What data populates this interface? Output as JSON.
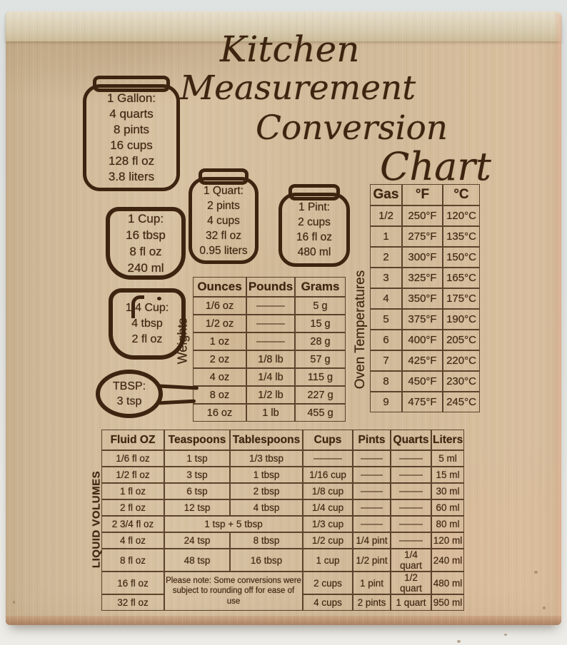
{
  "title": {
    "line1": "Kitchen",
    "line2": "Measurement",
    "line3": "Conversion",
    "line4": "Chart"
  },
  "vessels": {
    "gallon": {
      "lines": [
        "1 Gallon:",
        "4 quarts",
        "8 pints",
        "16 cups",
        "128 fl oz",
        "3.8 liters"
      ]
    },
    "quart": {
      "lines": [
        "1 Quart:",
        "2 pints",
        "4 cups",
        "32 fl oz",
        "0.95 liters"
      ]
    },
    "pint": {
      "lines": [
        "1 Pint:",
        "2 cups",
        "16 fl oz",
        "480 ml"
      ]
    },
    "cup": {
      "lines": [
        "1 Cup:",
        "16 tbsp",
        "8 fl oz",
        "240 ml"
      ]
    },
    "quarter_cup": {
      "lines": [
        "1/4 Cup:",
        "4 tbsp",
        "2 fl oz"
      ]
    },
    "tbsp": {
      "lines": [
        "TBSP:",
        "3 tsp"
      ]
    }
  },
  "tables": {
    "weights": {
      "label": "Weights",
      "headers": [
        "Ounces",
        "Pounds",
        "Grams"
      ],
      "rows": [
        [
          "1/6 oz",
          {
            "d": 1
          },
          "5 g"
        ],
        [
          "1/2 oz",
          {
            "d": 1
          },
          "15 g"
        ],
        [
          "1 oz",
          {
            "d": 1
          },
          "28 g"
        ],
        [
          "2 oz",
          "1/8 lb",
          "57 g"
        ],
        [
          "4 oz",
          "1/4 lb",
          "115 g"
        ],
        [
          "8 oz",
          "1/2 lb",
          "227 g"
        ],
        [
          "16 oz",
          "1 lb",
          "455 g"
        ]
      ]
    },
    "oven": {
      "label": "Oven Temperatures",
      "headers": [
        "Gas",
        "°F",
        "°C"
      ],
      "rows": [
        [
          "1/2",
          "250°F",
          "120°C"
        ],
        [
          "1",
          "275°F",
          "135°C"
        ],
        [
          "2",
          "300°F",
          "150°C"
        ],
        [
          "3",
          "325°F",
          "165°C"
        ],
        [
          "4",
          "350°F",
          "175°C"
        ],
        [
          "5",
          "375°F",
          "190°C"
        ],
        [
          "6",
          "400°F",
          "205°C"
        ],
        [
          "7",
          "425°F",
          "220°C"
        ],
        [
          "8",
          "450°F",
          "230°C"
        ],
        [
          "9",
          "475°F",
          "245°C"
        ]
      ]
    },
    "liquid": {
      "label": "LIQUID VOLUMES",
      "headers": [
        "Fluid OZ",
        "Teaspoons",
        "Tablespoons",
        "Cups",
        "Pints",
        "Quarts",
        "Liters"
      ],
      "rows": [
        [
          "1/6 fl oz",
          "1 tsp",
          "1/3 tbsp",
          {
            "d": 1
          },
          {
            "d": 1
          },
          {
            "d": 1
          },
          "5 ml"
        ],
        [
          "1/2 fl oz",
          "3 tsp",
          "1 tbsp",
          "1/16 cup",
          {
            "d": 1
          },
          {
            "d": 1
          },
          "15 ml"
        ],
        [
          "1 fl oz",
          "6 tsp",
          "2 tbsp",
          "1/8 cup",
          {
            "d": 1
          },
          {
            "d": 1
          },
          "30 ml"
        ],
        [
          "2 fl oz",
          "12 tsp",
          "4 tbsp",
          "1/4 cup",
          {
            "d": 1
          },
          {
            "d": 1
          },
          "60 ml"
        ],
        [
          "2 3/4 fl oz",
          {
            "t": "1 tsp + 5 tbsp",
            "c": 2
          },
          "1/3 cup",
          {
            "d": 1
          },
          {
            "d": 1
          },
          "80 ml"
        ],
        [
          "4 fl oz",
          "24 tsp",
          "8 tbsp",
          "1/2 cup",
          "1/4 pint",
          {
            "d": 1
          },
          "120 ml"
        ],
        [
          "8 fl oz",
          "48 tsp",
          "16 tbsp",
          "1 cup",
          "1/2 pint",
          "1/4 quart",
          "240 ml"
        ],
        [
          "16 fl oz",
          {
            "t": "Please note: Some conversions were subject to rounding off for ease of use",
            "c": 2,
            "r": 2,
            "note": 1
          },
          "2 cups",
          "1 pint",
          "1/2 quart",
          "480 ml"
        ],
        [
          "32 fl oz",
          "4 cups",
          "2 pints",
          "1 quart",
          "950 ml"
        ]
      ]
    }
  },
  "colors": {
    "background": "#e3e5e2",
    "wood": "#d5bf9e",
    "engraving": "#3d2410"
  },
  "chart_data": [
    {
      "type": "table",
      "title": "Weights",
      "columns": [
        "Ounces",
        "Pounds",
        "Grams"
      ],
      "rows": [
        [
          "1/6 oz",
          "",
          "5 g"
        ],
        [
          "1/2 oz",
          "",
          "15 g"
        ],
        [
          "1 oz",
          "",
          "28 g"
        ],
        [
          "2 oz",
          "1/8 lb",
          "57 g"
        ],
        [
          "4 oz",
          "1/4 lb",
          "115 g"
        ],
        [
          "8 oz",
          "1/2 lb",
          "227 g"
        ],
        [
          "16 oz",
          "1 lb",
          "455 g"
        ]
      ]
    },
    {
      "type": "table",
      "title": "Oven Temperatures",
      "columns": [
        "Gas",
        "°F",
        "°C"
      ],
      "rows": [
        [
          "1/2",
          "250°F",
          "120°C"
        ],
        [
          "1",
          "275°F",
          "135°C"
        ],
        [
          "2",
          "300°F",
          "150°C"
        ],
        [
          "3",
          "325°F",
          "165°C"
        ],
        [
          "4",
          "350°F",
          "175°C"
        ],
        [
          "5",
          "375°F",
          "190°C"
        ],
        [
          "6",
          "400°F",
          "205°C"
        ],
        [
          "7",
          "425°F",
          "220°C"
        ],
        [
          "8",
          "450°F",
          "230°C"
        ],
        [
          "9",
          "475°F",
          "245°C"
        ]
      ]
    },
    {
      "type": "table",
      "title": "LIQUID VOLUMES",
      "columns": [
        "Fluid OZ",
        "Teaspoons",
        "Tablespoons",
        "Cups",
        "Pints",
        "Quarts",
        "Liters"
      ],
      "rows": [
        [
          "1/6 fl oz",
          "1 tsp",
          "1/3 tbsp",
          "",
          "",
          "",
          "5 ml"
        ],
        [
          "1/2 fl oz",
          "3 tsp",
          "1 tbsp",
          "1/16 cup",
          "",
          "",
          "15 ml"
        ],
        [
          "1 fl oz",
          "6 tsp",
          "2 tbsp",
          "1/8 cup",
          "",
          "",
          "30 ml"
        ],
        [
          "2 fl oz",
          "12 tsp",
          "4 tbsp",
          "1/4 cup",
          "",
          "",
          "60 ml"
        ],
        [
          "2 3/4 fl oz",
          "1 tsp + 5 tbsp",
          "",
          "1/3 cup",
          "",
          "",
          "80 ml"
        ],
        [
          "4 fl oz",
          "24 tsp",
          "8 tbsp",
          "1/2 cup",
          "1/4 pint",
          "",
          "120 ml"
        ],
        [
          "8 fl oz",
          "48 tsp",
          "16 tbsp",
          "1 cup",
          "1/2 pint",
          "1/4 quart",
          "240 ml"
        ],
        [
          "16 fl oz",
          "",
          "",
          "2 cups",
          "1 pint",
          "1/2 quart",
          "480 ml"
        ],
        [
          "32 fl oz",
          "",
          "",
          "4 cups",
          "2 pints",
          "1 quart",
          "950 ml"
        ]
      ],
      "note": "Please note: Some conversions were subject to rounding off for ease of use",
      "equivalences": {
        "1 Gallon": [
          "4 quarts",
          "8 pints",
          "16 cups",
          "128 fl oz",
          "3.8 liters"
        ],
        "1 Quart": [
          "2 pints",
          "4 cups",
          "32 fl oz",
          "0.95 liters"
        ],
        "1 Pint": [
          "2 cups",
          "16 fl oz",
          "480 ml"
        ],
        "1 Cup": [
          "16 tbsp",
          "8 fl oz",
          "240 ml"
        ],
        "1/4 Cup": [
          "4 tbsp",
          "2 fl oz"
        ],
        "1 TBSP": [
          "3 tsp"
        ]
      }
    }
  ]
}
